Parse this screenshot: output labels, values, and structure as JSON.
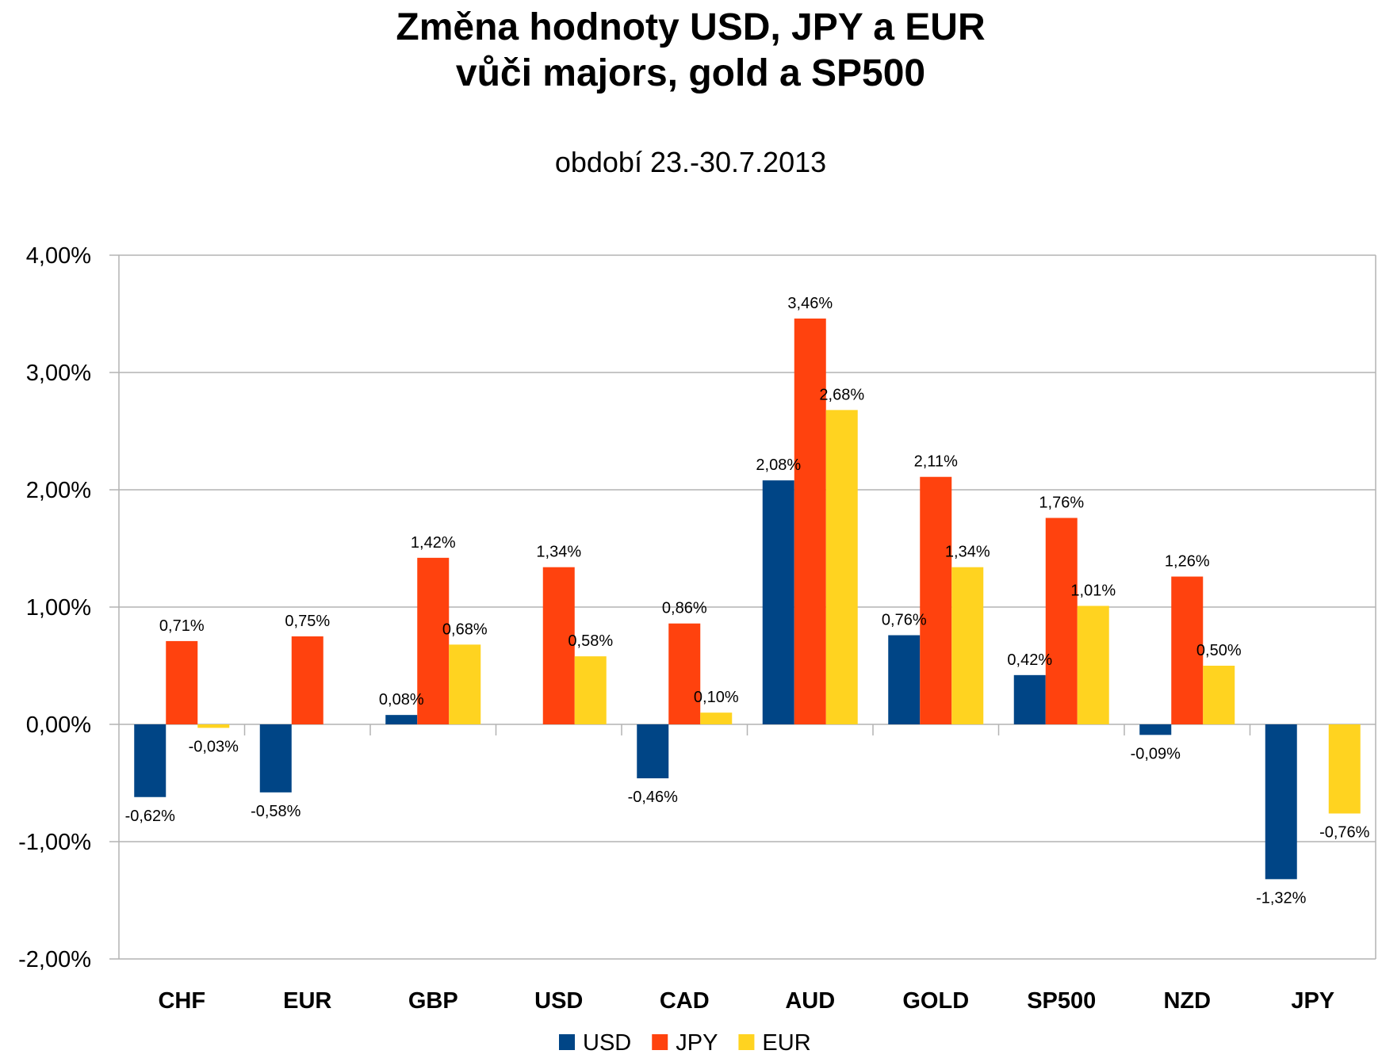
{
  "chart_data": {
    "type": "bar",
    "title_lines": [
      "Změna hodnoty USD, JPY a EUR",
      "vůči majors, gold a SP500"
    ],
    "subtitle": "období 23.-30.7.2013",
    "categories": [
      "CHF",
      "EUR",
      "GBP",
      "USD",
      "CAD",
      "AUD",
      "GOLD",
      "SP500",
      "NZD",
      "JPY"
    ],
    "series": [
      {
        "name": "USD",
        "color": "#004586",
        "values": [
          -0.62,
          -0.58,
          0.08,
          null,
          -0.46,
          2.08,
          0.76,
          0.42,
          -0.09,
          -1.32
        ],
        "labels": [
          "-0,62%",
          "-0,58%",
          "0,08%",
          null,
          "-0,46%",
          "2,08%",
          "0,76%",
          "0,42%",
          "-0,09%",
          "-1,32%"
        ]
      },
      {
        "name": "JPY",
        "color": "#ff420e",
        "values": [
          0.71,
          0.75,
          1.42,
          1.34,
          0.86,
          3.46,
          2.11,
          1.76,
          1.26,
          null
        ],
        "labels": [
          "0,71%",
          "0,75%",
          "1,42%",
          "1,34%",
          "0,86%",
          "3,46%",
          "2,11%",
          "1,76%",
          "1,26%",
          null
        ]
      },
      {
        "name": "EUR",
        "color": "#ffd320",
        "values": [
          -0.03,
          null,
          0.68,
          0.58,
          0.1,
          2.68,
          1.34,
          1.01,
          0.5,
          -0.76
        ],
        "labels": [
          "-0,03%",
          null,
          "0,68%",
          "0,58%",
          "0,10%",
          "2,68%",
          "1,34%",
          "1,01%",
          "0,50%",
          "-0,76%"
        ]
      }
    ],
    "ylim": [
      -2,
      4
    ],
    "yticks": [
      4,
      3,
      2,
      1,
      0,
      -1,
      -2
    ],
    "ytick_labels": [
      "4,00%",
      "3,00%",
      "2,00%",
      "1,00%",
      "0,00%",
      "-1,00%",
      "-2,00%"
    ],
    "grid": true,
    "legend_position": "bottom"
  }
}
